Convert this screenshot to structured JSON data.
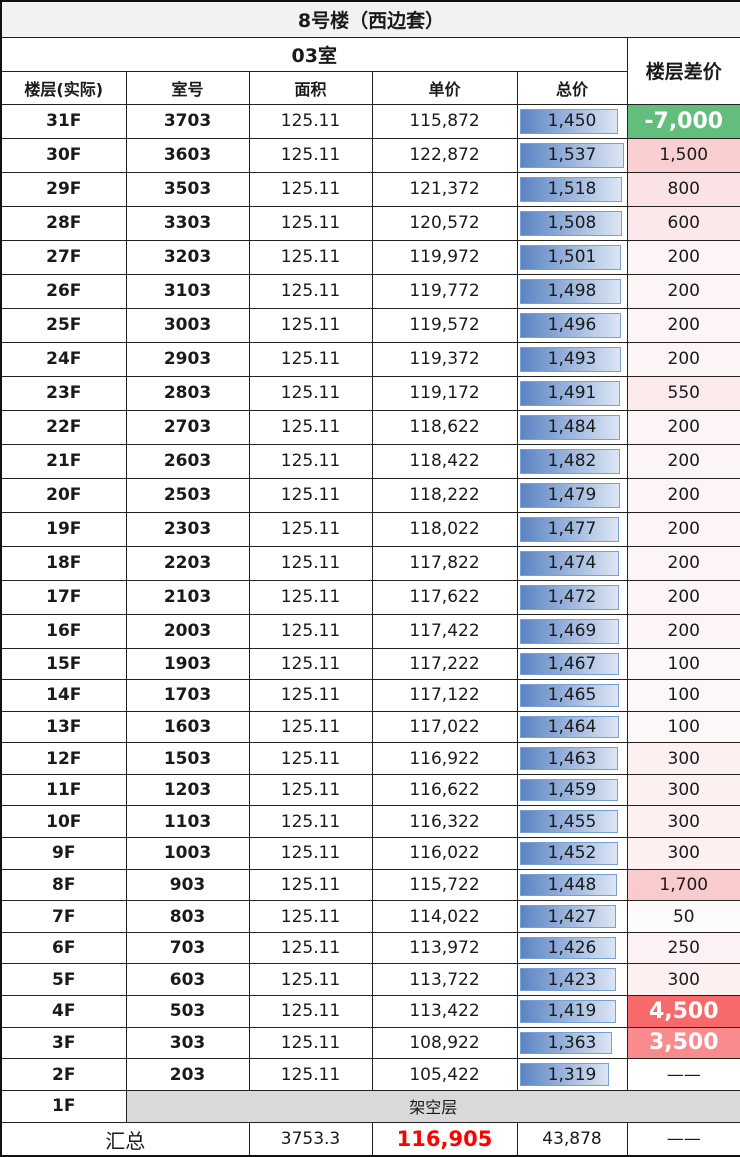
{
  "title": "8号楼（西边套）",
  "unit_header": "03室",
  "diff_header": "楼层差价",
  "columns": [
    "楼层(实际)",
    "室号",
    "面积",
    "单价",
    "总价"
  ],
  "rows": [
    [
      "31F",
      "3703",
      "125.11",
      "115,872",
      "1,450",
      "-7,000",
      "#63be7b"
    ],
    [
      "30F",
      "3603",
      "125.11",
      "122,872",
      "1,537",
      "1,500",
      "#f9cfd2"
    ],
    [
      "29F",
      "3503",
      "125.11",
      "121,372",
      "1,518",
      "800",
      "#fbe3e5"
    ],
    [
      "28F",
      "3303",
      "125.11",
      "120,572",
      "1,508",
      "600",
      "#fbe8ea"
    ],
    [
      "27F",
      "3203",
      "125.11",
      "119,972",
      "1,501",
      "200",
      "#fcf4f5"
    ],
    [
      "26F",
      "3103",
      "125.11",
      "119,772",
      "1,498",
      "200",
      "#fcf4f5"
    ],
    [
      "25F",
      "3003",
      "125.11",
      "119,572",
      "1,496",
      "200",
      "#fcf4f5"
    ],
    [
      "24F",
      "2903",
      "125.11",
      "119,372",
      "1,493",
      "200",
      "#fcf4f5"
    ],
    [
      "23F",
      "2803",
      "125.11",
      "119,172",
      "1,491",
      "550",
      "#fbeaec"
    ],
    [
      "22F",
      "2703",
      "125.11",
      "118,622",
      "1,484",
      "200",
      "#fcf4f5"
    ],
    [
      "21F",
      "2603",
      "125.11",
      "118,422",
      "1,482",
      "200",
      "#fcf4f5"
    ],
    [
      "20F",
      "2503",
      "125.11",
      "118,222",
      "1,479",
      "200",
      "#fcf4f5"
    ],
    [
      "19F",
      "2303",
      "125.11",
      "118,022",
      "1,477",
      "200",
      "#fcf4f5"
    ],
    [
      "18F",
      "2203",
      "125.11",
      "117,822",
      "1,474",
      "200",
      "#fcf4f5"
    ],
    [
      "17F",
      "2103",
      "125.11",
      "117,622",
      "1,472",
      "200",
      "#fcf4f5"
    ],
    [
      "16F",
      "2003",
      "125.11",
      "117,422",
      "1,469",
      "200",
      "#fcf4f5"
    ],
    [
      "15F",
      "1903",
      "125.11",
      "117,222",
      "1,467",
      "100",
      "#fcf8f9"
    ],
    [
      "14F",
      "1703",
      "125.11",
      "117,122",
      "1,465",
      "100",
      "#fcf8f9"
    ],
    [
      "13F",
      "1603",
      "125.11",
      "117,022",
      "1,464",
      "100",
      "#fcf8f9"
    ],
    [
      "12F",
      "1503",
      "125.11",
      "116,922",
      "1,463",
      "300",
      "#fcf0f1"
    ],
    [
      "11F",
      "1203",
      "125.11",
      "116,622",
      "1,459",
      "300",
      "#fcf0f1"
    ],
    [
      "10F",
      "1103",
      "125.11",
      "116,322",
      "1,455",
      "300",
      "#fcf0f1"
    ],
    [
      "9F",
      "1003",
      "125.11",
      "116,022",
      "1,452",
      "300",
      "#fcf0f1"
    ],
    [
      "8F",
      "903",
      "125.11",
      "115,722",
      "1,448",
      "1,700",
      "#f9cbce"
    ],
    [
      "7F",
      "803",
      "125.11",
      "114,022",
      "1,427",
      "50",
      "#fcfafb"
    ],
    [
      "6F",
      "703",
      "125.11",
      "113,972",
      "1,426",
      "250",
      "#fcf2f3"
    ],
    [
      "5F",
      "603",
      "125.11",
      "113,722",
      "1,423",
      "300",
      "#fcf0f1"
    ],
    [
      "4F",
      "503",
      "125.11",
      "113,422",
      "1,419",
      "4,500",
      "#f8696b"
    ],
    [
      "3F",
      "303",
      "125.11",
      "108,922",
      "1,363",
      "3,500",
      "#f98b8d"
    ],
    [
      "2F",
      "203",
      "125.11",
      "105,422",
      "1,319",
      "——",
      "#ffffff"
    ]
  ],
  "stilt_row": {
    "floor": "1F",
    "label": "架空层"
  },
  "total": {
    "label": "汇总",
    "area": "3753.3",
    "avg_price": "116,905",
    "total_price": "43,878",
    "diff": "——"
  },
  "colors": {
    "bar": "#5b84c4",
    "total_price_red": "#ff0000"
  }
}
